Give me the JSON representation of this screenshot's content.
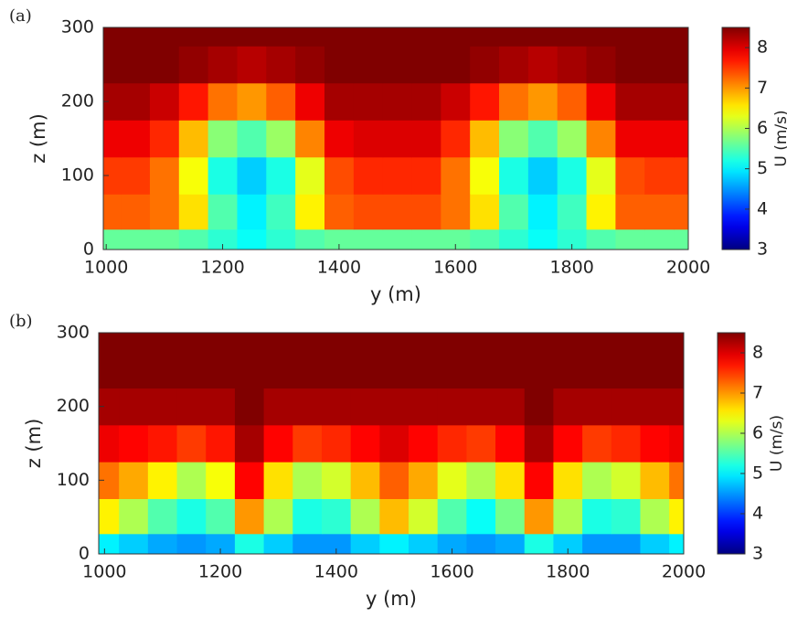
{
  "chart_data": [
    {
      "type": "heatmap",
      "panel_label": "(a)",
      "xlabel": "y (m)",
      "ylabel": "z (m)",
      "x": [
        1000,
        1050,
        1100,
        1150,
        1200,
        1250,
        1300,
        1350,
        1400,
        1450,
        1500,
        1550,
        1600,
        1650,
        1700,
        1750,
        1800,
        1850,
        1900,
        1950,
        2000
      ],
      "y": [
        5,
        50,
        100,
        150,
        200,
        250,
        300
      ],
      "values": [
        [
          5.6,
          5.6,
          5.6,
          5.5,
          5.3,
          5.1,
          5.3,
          5.5,
          5.6,
          5.6,
          5.6,
          5.6,
          5.6,
          5.5,
          5.3,
          5.1,
          5.3,
          5.5,
          5.6,
          5.6,
          5.6
        ],
        [
          7.3,
          7.3,
          7.2,
          6.6,
          5.5,
          5.0,
          5.4,
          6.5,
          7.3,
          7.4,
          7.4,
          7.4,
          7.2,
          6.6,
          5.5,
          5.0,
          5.4,
          6.5,
          7.3,
          7.3,
          7.3
        ],
        [
          7.5,
          7.5,
          7.2,
          6.4,
          5.2,
          4.8,
          5.2,
          6.3,
          7.4,
          7.6,
          7.6,
          7.6,
          7.2,
          6.4,
          5.2,
          4.8,
          5.2,
          6.3,
          7.4,
          7.5,
          7.5
        ],
        [
          7.9,
          7.9,
          7.6,
          6.8,
          5.8,
          5.5,
          5.9,
          7.1,
          7.9,
          8.0,
          8.0,
          8.0,
          7.6,
          6.8,
          5.8,
          5.5,
          5.9,
          7.1,
          7.9,
          7.9,
          7.9
        ],
        [
          8.3,
          8.3,
          8.1,
          7.7,
          7.2,
          7.0,
          7.3,
          7.9,
          8.3,
          8.3,
          8.3,
          8.3,
          8.1,
          7.7,
          7.2,
          7.0,
          7.3,
          7.9,
          8.3,
          8.3,
          8.3
        ],
        [
          8.5,
          8.5,
          8.5,
          8.4,
          8.3,
          8.2,
          8.3,
          8.4,
          8.5,
          8.5,
          8.5,
          8.5,
          8.5,
          8.4,
          8.3,
          8.2,
          8.3,
          8.4,
          8.5,
          8.5,
          8.5
        ],
        [
          8.5,
          8.5,
          8.5,
          8.5,
          8.5,
          8.5,
          8.5,
          8.5,
          8.5,
          8.5,
          8.5,
          8.5,
          8.5,
          8.5,
          8.5,
          8.5,
          8.5,
          8.5,
          8.5,
          8.5,
          8.5
        ]
      ],
      "xlim": [
        995,
        2000
      ],
      "ylim": [
        0,
        300
      ],
      "xticks": [
        1000,
        1200,
        1400,
        1600,
        1800,
        2000
      ],
      "yticks": [
        0,
        100,
        200,
        300
      ],
      "colormap": "jet",
      "colorbar": {
        "label": "U (m/s)",
        "lim": [
          3,
          8.5
        ],
        "ticks": [
          3,
          4,
          5,
          6,
          7,
          8
        ]
      }
    },
    {
      "type": "heatmap",
      "panel_label": "(b)",
      "xlabel": "y (m)",
      "ylabel": "z (m)",
      "x": [
        1000,
        1050,
        1100,
        1150,
        1200,
        1250,
        1300,
        1350,
        1400,
        1450,
        1500,
        1550,
        1600,
        1650,
        1700,
        1750,
        1800,
        1850,
        1900,
        1950,
        2000
      ],
      "y": [
        5,
        50,
        100,
        150,
        200,
        250,
        300
      ],
      "values": [
        [
          5.0,
          4.8,
          4.6,
          4.5,
          4.6,
          5.2,
          4.8,
          4.5,
          4.5,
          4.8,
          5.0,
          4.8,
          4.6,
          4.5,
          4.6,
          5.2,
          4.8,
          4.5,
          4.5,
          4.8,
          5.0
        ],
        [
          6.5,
          6.0,
          5.5,
          5.2,
          5.5,
          7.0,
          6.0,
          5.2,
          5.3,
          6.0,
          6.8,
          6.2,
          5.5,
          5.1,
          5.7,
          7.0,
          6.0,
          5.2,
          5.3,
          6.0,
          6.5
        ],
        [
          7.2,
          6.9,
          6.5,
          6.0,
          6.4,
          7.8,
          6.6,
          6.0,
          6.2,
          6.8,
          7.3,
          6.9,
          6.3,
          6.0,
          6.6,
          7.8,
          6.6,
          6.0,
          6.2,
          6.8,
          7.2
        ],
        [
          7.9,
          7.8,
          7.7,
          7.5,
          7.7,
          8.3,
          7.8,
          7.5,
          7.6,
          7.8,
          8.0,
          7.8,
          7.6,
          7.5,
          7.8,
          8.3,
          7.8,
          7.5,
          7.6,
          7.8,
          7.9
        ],
        [
          8.3,
          8.3,
          8.3,
          8.3,
          8.3,
          8.5,
          8.3,
          8.3,
          8.3,
          8.3,
          8.3,
          8.3,
          8.3,
          8.3,
          8.3,
          8.5,
          8.3,
          8.3,
          8.3,
          8.3,
          8.3
        ],
        [
          8.5,
          8.5,
          8.5,
          8.5,
          8.5,
          8.5,
          8.5,
          8.5,
          8.5,
          8.5,
          8.5,
          8.5,
          8.5,
          8.5,
          8.5,
          8.5,
          8.5,
          8.5,
          8.5,
          8.5,
          8.5
        ],
        [
          8.5,
          8.5,
          8.5,
          8.5,
          8.5,
          8.5,
          8.5,
          8.5,
          8.5,
          8.5,
          8.5,
          8.5,
          8.5,
          8.5,
          8.5,
          8.5,
          8.5,
          8.5,
          8.5,
          8.5,
          8.5
        ]
      ],
      "xlim": [
        990,
        2000
      ],
      "ylim": [
        0,
        300
      ],
      "xticks": [
        1000,
        1200,
        1400,
        1600,
        1800,
        2000
      ],
      "yticks": [
        0,
        100,
        200,
        300
      ],
      "colormap": "jet",
      "colorbar": {
        "label": "U (m/s)",
        "lim": [
          3,
          8.5
        ],
        "ticks": [
          3,
          4,
          5,
          6,
          7,
          8
        ]
      }
    }
  ]
}
